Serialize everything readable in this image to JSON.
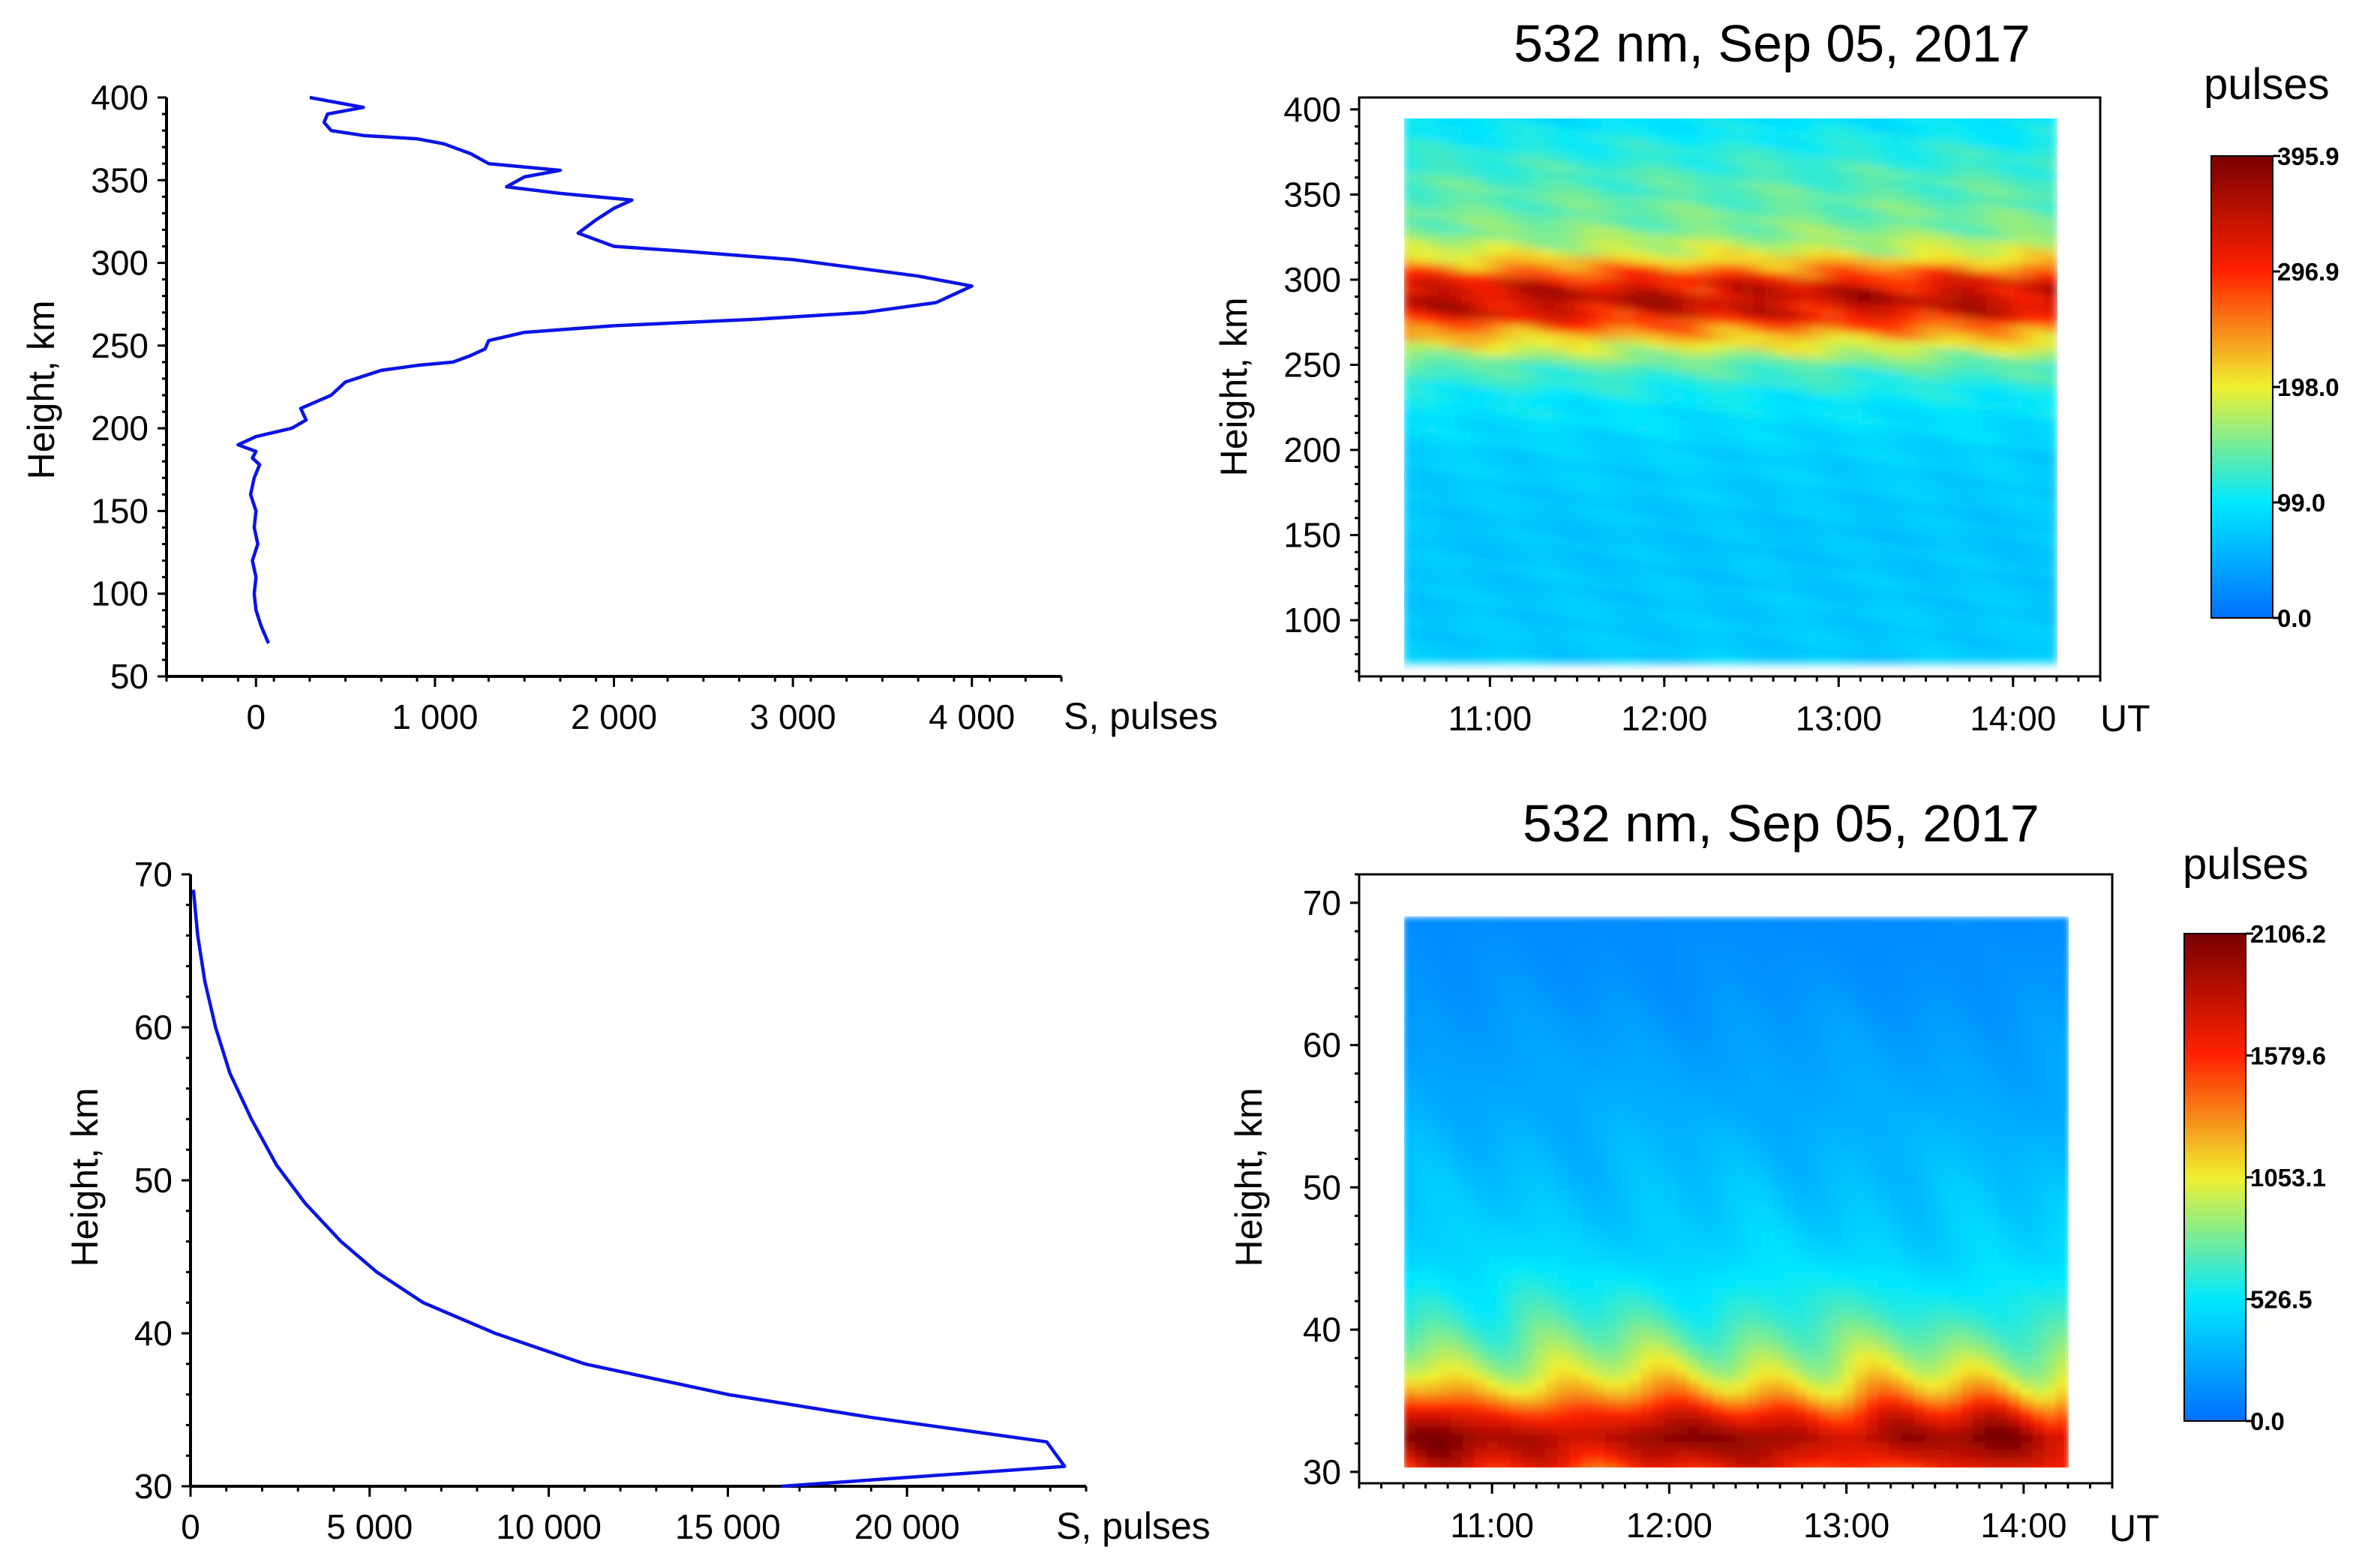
{
  "chart_data": [
    {
      "id": "upper-profile",
      "type": "line",
      "xlabel": "S, pulses",
      "ylabel": "Height, km",
      "xlim": [
        -500,
        4500
      ],
      "ylim": [
        50,
        400
      ],
      "xticks": [
        "0",
        "1 000",
        "2 000",
        "3 000",
        "4 000"
      ],
      "yticks": [
        "400",
        "350",
        "300",
        "250",
        "200",
        "150",
        "100",
        "50"
      ],
      "line_color": "#0a14e6",
      "series": [
        {
          "name": "S",
          "x": [
            70,
            30,
            0,
            -10,
            0,
            -20,
            10,
            -10,
            0,
            -30,
            -10,
            20,
            -20,
            0,
            -100,
            0,
            200,
            280,
            250,
            420,
            500,
            700,
            900,
            1100,
            1200,
            1280,
            1300,
            1500,
            2000,
            2800,
            3400,
            3800,
            4000,
            3700,
            3000,
            2400,
            2000,
            1800,
            1900,
            2000,
            2100,
            1700,
            1400,
            1500,
            1700,
            1300,
            1200,
            1050,
            900,
            600,
            420,
            380,
            400,
            600,
            450,
            300
          ],
          "y": [
            70,
            80,
            90,
            100,
            110,
            120,
            130,
            140,
            150,
            160,
            170,
            178,
            182,
            186,
            190,
            195,
            200,
            205,
            212,
            220,
            228,
            235,
            238,
            240,
            244,
            248,
            253,
            258,
            262,
            266,
            270,
            276,
            286,
            292,
            302,
            307,
            310,
            318,
            326,
            333,
            338,
            342,
            346,
            352,
            356,
            360,
            366,
            372,
            375,
            377,
            380,
            385,
            390,
            394,
            397,
            400
          ]
        }
      ]
    },
    {
      "id": "upper-map",
      "type": "heatmap",
      "title": "532 nm,  Sep 05, 2017",
      "xlabel": "UT",
      "ylabel": "Height, km",
      "xlim": [
        10.25,
        14.5
      ],
      "ylim": [
        67,
        407
      ],
      "data_x_range": [
        10.5,
        14.25
      ],
      "data_y_range": [
        75,
        400
      ],
      "xticks": [
        "11:00",
        "12:00",
        "13:00",
        "14:00"
      ],
      "yticks": [
        "400",
        "350",
        "300",
        "250",
        "200",
        "150",
        "100"
      ],
      "colorbar": {
        "title": "pulses",
        "min": 0.0,
        "max": 395.9,
        "labels": [
          "395.9",
          "296.9",
          "198.0",
          "99.0",
          "0.0"
        ]
      },
      "profile": {
        "heights": [
          75,
          150,
          200,
          230,
          250,
          265,
          280,
          290,
          300,
          315,
          330,
          345,
          360,
          380,
          395,
          400
        ],
        "values": [
          75,
          70,
          80,
          100,
          135,
          210,
          320,
          350,
          310,
          190,
          150,
          140,
          130,
          110,
          95,
          90
        ]
      }
    },
    {
      "id": "lower-profile",
      "type": "line",
      "xlabel": "S, pulses",
      "ylabel": "Height, km",
      "xlim": [
        0,
        25000
      ],
      "ylim": [
        30,
        70
      ],
      "xticks": [
        "0",
        "5 000",
        "10 000",
        "15 000",
        "20 000"
      ],
      "yticks": [
        "70",
        "60",
        "50",
        "40",
        "30"
      ],
      "line_color": "#0a14e6",
      "series": [
        {
          "name": "S",
          "x": [
            16500,
            24400,
            23900,
            19000,
            15000,
            11000,
            8500,
            6500,
            5200,
            4200,
            3200,
            2400,
            1700,
            1100,
            700,
            400,
            200,
            80
          ],
          "y": [
            30,
            31.3,
            32.9,
            34.5,
            36,
            38,
            40,
            42,
            44,
            46,
            48.5,
            51,
            54,
            57,
            60,
            63,
            66,
            69
          ]
        }
      ]
    },
    {
      "id": "lower-map",
      "type": "heatmap",
      "title": "532 nm, Sep 05, 2017",
      "xlabel": "UT",
      "ylabel": "Height, km",
      "xlim": [
        10.25,
        14.5
      ],
      "ylim": [
        29.2,
        72
      ],
      "data_x_range": [
        10.5,
        14.25
      ],
      "data_y_range": [
        30,
        69
      ],
      "xticks": [
        "11:00",
        "12:00",
        "13:00",
        "14:00"
      ],
      "yticks": [
        "70",
        "60",
        "50",
        "40",
        "30"
      ],
      "colorbar": {
        "title": "pulses",
        "min": 0.0,
        "max": 2106.2,
        "labels": [
          "2106.2",
          "1579.6",
          "1053.1",
          "526.5",
          "0.0"
        ]
      },
      "profile": {
        "heights": [
          30,
          31,
          32.5,
          34,
          35.5,
          37,
          39,
          41,
          43,
          45,
          48,
          52,
          56,
          60,
          64,
          69
        ],
        "values": [
          1500,
          1750,
          1950,
          1650,
          1250,
          1000,
          800,
          650,
          550,
          460,
          390,
          320,
          260,
          210,
          160,
          120
        ]
      }
    }
  ]
}
